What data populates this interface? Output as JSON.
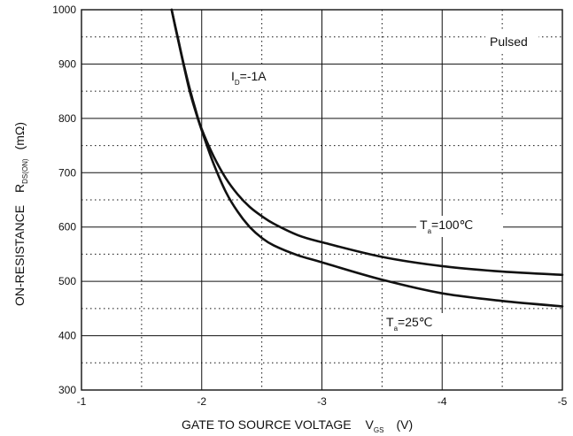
{
  "chart_data": {
    "type": "line",
    "title": "",
    "xlabel": "GATE TO SOURCE VOLTAGE",
    "xlabel_symbol": "V",
    "xlabel_symbol_sub": "GS",
    "xlabel_unit": "(V)",
    "ylabel": "ON-RESISTANCE",
    "ylabel_symbol": "R",
    "ylabel_symbol_sub": "DS(ON)",
    "ylabel_unit": "(mΩ)",
    "xlim": [
      -1,
      -5
    ],
    "ylim": [
      300,
      1000
    ],
    "x_ticks": [
      -1,
      -2,
      -3,
      -4,
      -5
    ],
    "x_tick_labels": [
      "-1",
      "-2",
      "-3",
      "-4",
      "-5"
    ],
    "x_minor_grid": [
      -1.5,
      -2.5,
      -3.5,
      -4.5
    ],
    "y_ticks": [
      300,
      400,
      500,
      600,
      700,
      800,
      900,
      1000
    ],
    "y_tick_labels": [
      "300",
      "400",
      "500",
      "600",
      "700",
      "800",
      "900",
      "1000"
    ],
    "y_minor_grid": [
      350,
      450,
      550,
      650,
      750,
      850,
      950
    ],
    "grid": true,
    "legend": "none",
    "series": [
      {
        "name": "Ta=100℃",
        "x": [
          -1.75,
          -1.8,
          -1.85,
          -1.9,
          -1.95,
          -2.0,
          -2.1,
          -2.2,
          -2.3,
          -2.4,
          -2.5,
          -2.6,
          -2.8,
          -3.0,
          -3.5,
          -4.0,
          -4.5,
          -5.0
        ],
        "y": [
          1000,
          950,
          900,
          855,
          815,
          780,
          730,
          690,
          660,
          637,
          620,
          606,
          585,
          572,
          545,
          528,
          518,
          512
        ]
      },
      {
        "name": "Ta=25℃",
        "x": [
          -1.75,
          -1.8,
          -1.85,
          -1.9,
          -1.95,
          -2.0,
          -2.1,
          -2.2,
          -2.3,
          -2.4,
          -2.5,
          -2.6,
          -2.8,
          -3.0,
          -3.5,
          -4.0,
          -4.5,
          -5.0
        ],
        "y": [
          1000,
          948,
          898,
          850,
          812,
          778,
          716,
          665,
          628,
          600,
          580,
          566,
          548,
          535,
          503,
          478,
          464,
          454
        ]
      }
    ],
    "annotations": {
      "pulsed": "Pulsed",
      "id": {
        "main": "I",
        "sub": "D",
        "rest": "=-1A"
      },
      "t100": {
        "main": "T",
        "sub": "a",
        "rest": "=100℃"
      },
      "t25": {
        "main": "T",
        "sub": "a",
        "rest": "=25℃"
      }
    }
  }
}
